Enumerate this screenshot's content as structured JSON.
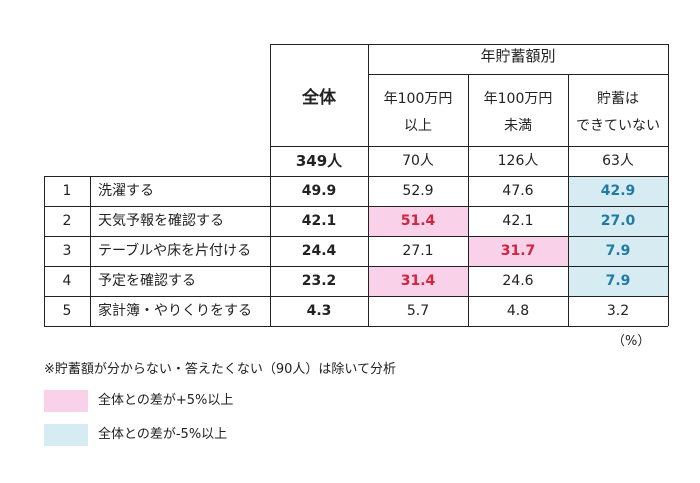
{
  "header": {
    "group_title": "年貯蓄額別",
    "all_label": "全体",
    "sub_columns": [
      "年100万円\n以上",
      "年100万円\n未満",
      "貯蓄は\nできていない"
    ]
  },
  "counts": {
    "all": "349人",
    "values": [
      "70人",
      "126人",
      "63人"
    ]
  },
  "rows": [
    {
      "rank": "1",
      "item": "洗濯する",
      "all": "49.9",
      "vals": [
        "52.9",
        "47.6",
        "42.9"
      ]
    },
    {
      "rank": "2",
      "item": "天気予報を確認する",
      "all": "42.1",
      "vals": [
        "51.4",
        "42.1",
        "27.0"
      ]
    },
    {
      "rank": "3",
      "item": "テーブルや床を片付ける",
      "all": "24.4",
      "vals": [
        "27.1",
        "31.7",
        "7.9"
      ]
    },
    {
      "rank": "4",
      "item": "予定を確認する",
      "all": "23.2",
      "vals": [
        "31.4",
        "24.6",
        "7.9"
      ]
    },
    {
      "rank": "5",
      "item": "家計簿・やりくりをする",
      "all": "4.3",
      "vals": [
        "5.7",
        "4.8",
        "3.2"
      ]
    }
  ],
  "highlights": {
    "pink": [
      [
        1,
        0
      ],
      [
        2,
        1
      ],
      [
        3,
        0
      ]
    ],
    "blue": [
      [
        0,
        2
      ],
      [
        1,
        2
      ],
      [
        2,
        2
      ],
      [
        3,
        2
      ]
    ]
  },
  "unit": "（%）",
  "note": "※貯蓄額が分からない・答えたくない（90人）は除いて分析",
  "legend": {
    "pink_label": "全体との差が+5%以上",
    "blue_label": "全体との差が-5%以上",
    "pink_color": "#f9d1e8",
    "blue_color": "#d6ebf2"
  },
  "colors": {
    "pink_text": "#d0253f",
    "blue_text": "#1f7aa6"
  }
}
